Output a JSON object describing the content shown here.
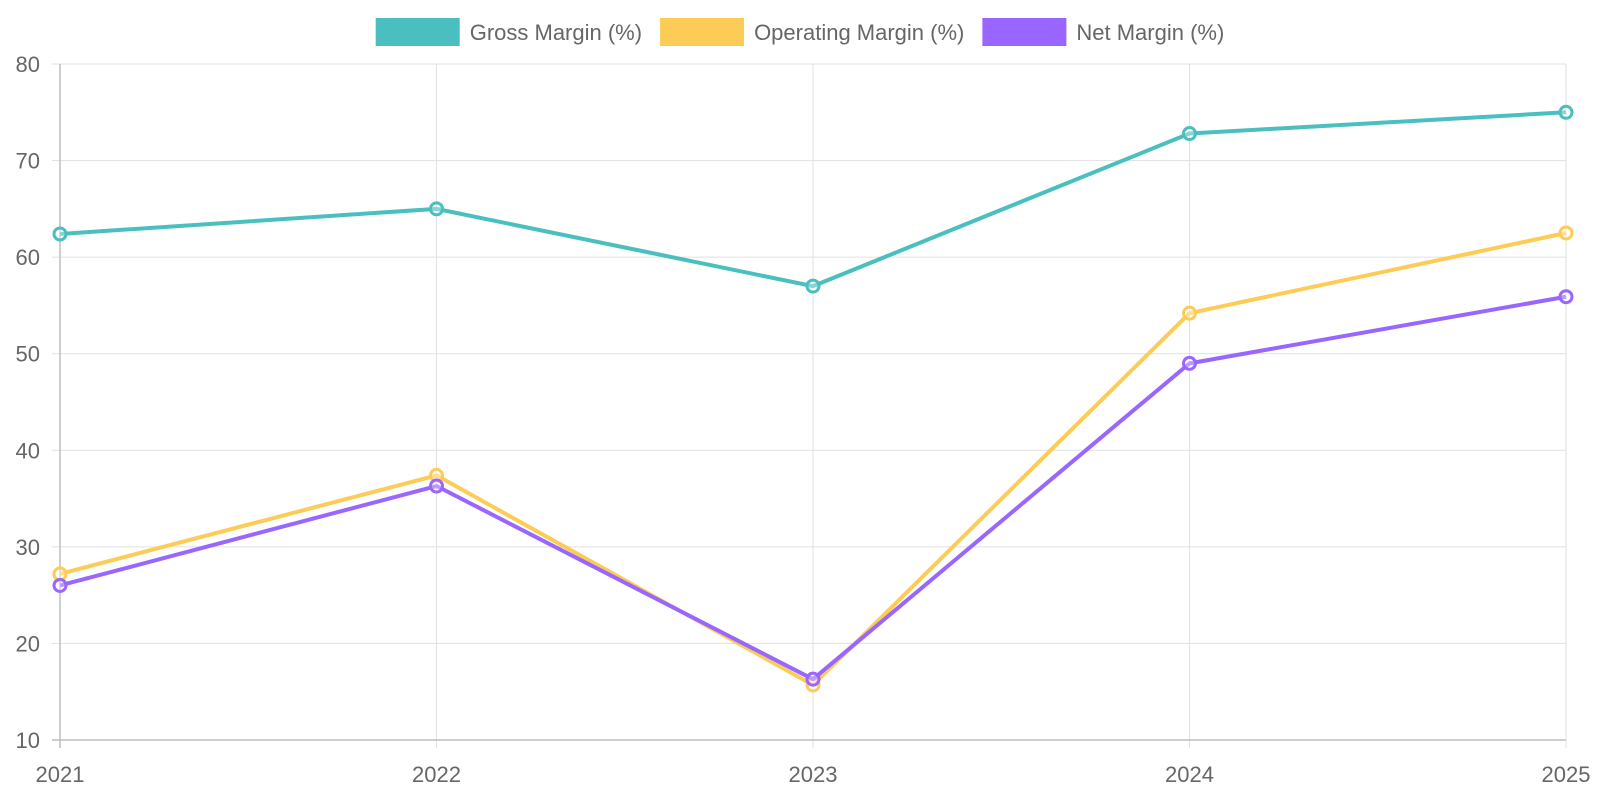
{
  "chart_data": {
    "type": "line",
    "x": [
      "2021",
      "2022",
      "2023",
      "2024",
      "2025"
    ],
    "ylim": [
      10,
      80
    ],
    "yticks": [
      10,
      20,
      30,
      40,
      50,
      60,
      70,
      80
    ],
    "grid": true,
    "legend_position": "top",
    "series": [
      {
        "name": "Gross Margin (%)",
        "color": "#4bbfbf",
        "values": [
          62.4,
          65.0,
          57.0,
          72.8,
          75.0
        ]
      },
      {
        "name": "Operating Margin (%)",
        "color": "#fdcc56",
        "values": [
          27.2,
          37.4,
          15.7,
          54.2,
          62.5
        ]
      },
      {
        "name": "Net Margin (%)",
        "color": "#9966ff",
        "values": [
          26.0,
          36.3,
          16.3,
          49.0,
          55.9
        ]
      }
    ]
  }
}
